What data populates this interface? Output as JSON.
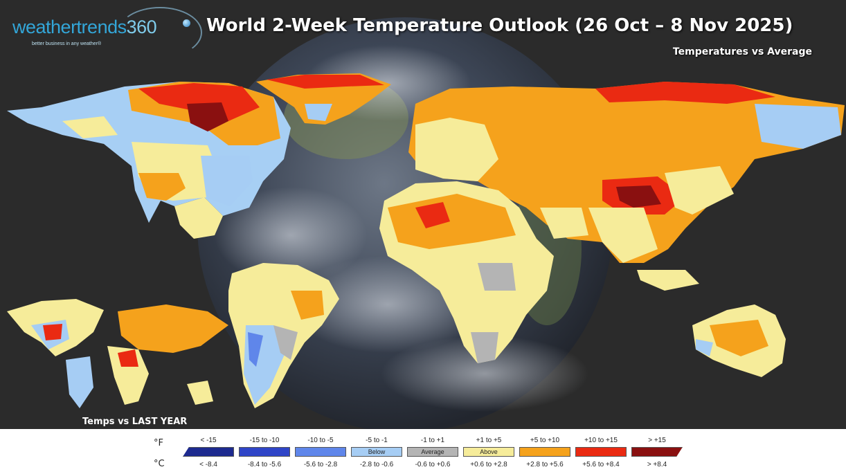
{
  "header": {
    "brand_word": "weathertrends",
    "brand_num": "360",
    "brand_tagline": "better business in any weather®",
    "title": "World 2-Week Temperature Outlook (26 Oct – 8 Nov 2025)",
    "subtitle": "Temperatures vs Average"
  },
  "inset": {
    "label": "Temps vs LAST YEAR"
  },
  "legend": {
    "unit_f": "°F",
    "unit_c": "°C",
    "items": [
      {
        "f": "< -15",
        "c": "< -8.4",
        "color": "#1d2a8f",
        "label": ""
      },
      {
        "f": "-15 to -10",
        "c": "-8.4 to -5.6",
        "color": "#2f45c7",
        "label": ""
      },
      {
        "f": "-10 to -5",
        "c": "-5.6 to -2.8",
        "color": "#5f86ea",
        "label": ""
      },
      {
        "f": "-5 to -1",
        "c": "-2.8 to -0.6",
        "color": "#a6cdf4",
        "label": "Below"
      },
      {
        "f": "-1 to +1",
        "c": "-0.6 to +0.6",
        "color": "#b4b4b4",
        "label": "Average"
      },
      {
        "f": "+1 to +5",
        "c": "+0.6 to +2.8",
        "color": "#f6ec9a",
        "label": "Above"
      },
      {
        "f": "+5 to +10",
        "c": "+2.8 to +5.6",
        "color": "#f5a21c",
        "label": ""
      },
      {
        "f": "+10 to +15",
        "c": "+5.6 to +8.4",
        "color": "#ea2a12",
        "label": ""
      },
      {
        "f": "> +15",
        "c": "> +8.4",
        "color": "#8a1010",
        "label": ""
      }
    ]
  }
}
